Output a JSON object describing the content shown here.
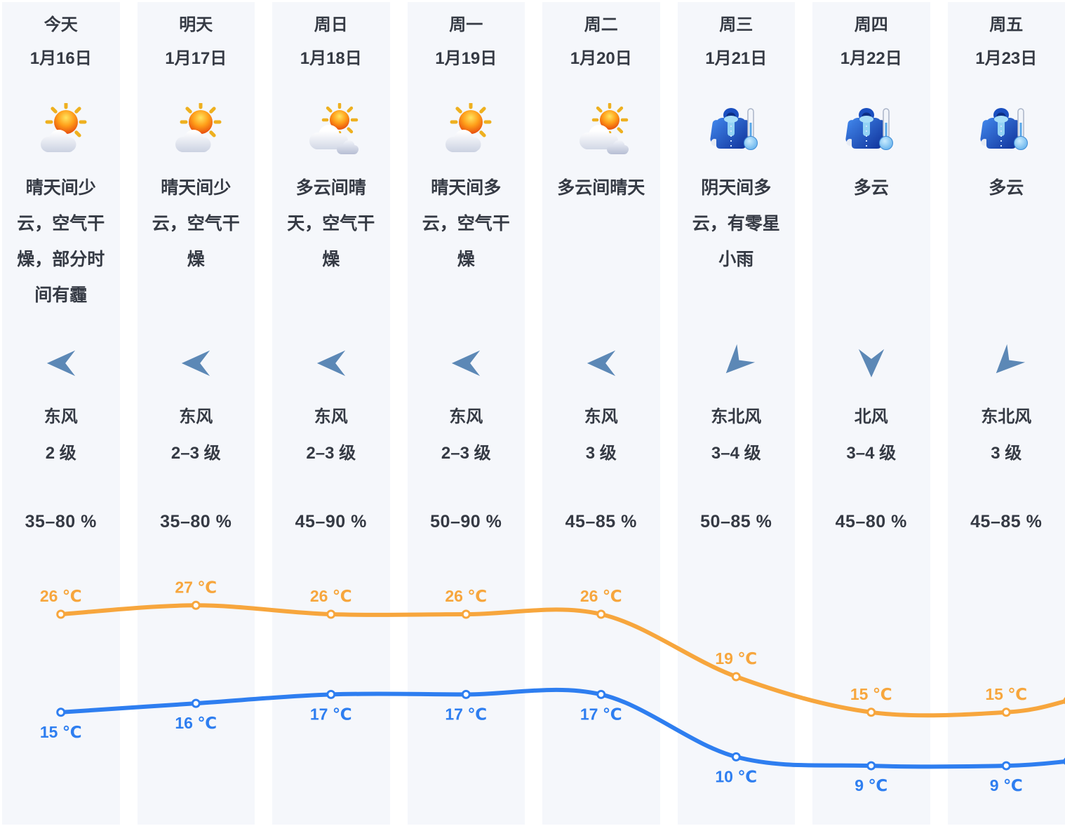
{
  "colors": {
    "high_temp": "#f7a63d",
    "low_temp": "#2e7ef0",
    "text": "#353a44",
    "column_bg": "#f5f7fb",
    "wind_arrow": "#5c88b6"
  },
  "days": [
    {
      "day": "今天",
      "date": "1月16日",
      "icon": "sun-small-cloud",
      "desc": "晴天间少云，空气干燥，部分时间有霾",
      "wind_dir": "东风",
      "wind_arrow": "east",
      "wind_level": "2 级",
      "humidity": "35–80 %",
      "high_label": "26 ℃",
      "low_label": "15 ℃"
    },
    {
      "day": "明天",
      "date": "1月17日",
      "icon": "sun-small-cloud",
      "desc": "晴天间少云，空气干燥",
      "wind_dir": "东风",
      "wind_arrow": "east",
      "wind_level": "2–3 级",
      "humidity": "35–80 %",
      "high_label": "27 ℃",
      "low_label": "16 ℃"
    },
    {
      "day": "周日",
      "date": "1月18日",
      "icon": "cloud-sun",
      "desc": "多云间晴天，空气干燥",
      "wind_dir": "东风",
      "wind_arrow": "east",
      "wind_level": "2–3 级",
      "humidity": "45–90 %",
      "high_label": "26 ℃",
      "low_label": "17 ℃"
    },
    {
      "day": "周一",
      "date": "1月19日",
      "icon": "sun-small-cloud",
      "desc": "晴天间多云，空气干燥",
      "wind_dir": "东风",
      "wind_arrow": "east",
      "wind_level": "2–3 级",
      "humidity": "50–90 %",
      "high_label": "26 ℃",
      "low_label": "17 ℃"
    },
    {
      "day": "周二",
      "date": "1月20日",
      "icon": "cloud-sun",
      "desc": "多云间晴天",
      "wind_dir": "东风",
      "wind_arrow": "east",
      "wind_level": "3 级",
      "humidity": "45–85 %",
      "high_label": "26 ℃",
      "low_label": "17 ℃"
    },
    {
      "day": "周三",
      "date": "1月21日",
      "icon": "cold",
      "desc": "阴天间多云，有零星小雨",
      "wind_dir": "东北风",
      "wind_arrow": "northeast",
      "wind_level": "3–4 级",
      "humidity": "50–85 %",
      "high_label": "19 ℃",
      "low_label": "10 ℃"
    },
    {
      "day": "周四",
      "date": "1月22日",
      "icon": "cold",
      "desc": "多云",
      "wind_dir": "北风",
      "wind_arrow": "north",
      "wind_level": "3–4 级",
      "humidity": "45–80 %",
      "high_label": "15 ℃",
      "low_label": "9 ℃"
    },
    {
      "day": "周五",
      "date": "1月23日",
      "icon": "cold",
      "desc": "多云",
      "wind_dir": "东北风",
      "wind_arrow": "northeast",
      "wind_level": "3 级",
      "humidity": "45–85 %",
      "high_label": "15 ℃",
      "low_label": "9 ℃"
    }
  ],
  "chart_data": {
    "type": "line",
    "categories": [
      "1月16日",
      "1月17日",
      "1月18日",
      "1月19日",
      "1月20日",
      "1月21日",
      "1月22日",
      "1月23日"
    ],
    "series": [
      {
        "name": "high",
        "color": "#f7a63d",
        "values": [
          26,
          27,
          26,
          26,
          26,
          19,
          15,
          15
        ],
        "label_position": "above"
      },
      {
        "name": "low",
        "color": "#2e7ef0",
        "values": [
          15,
          16,
          17,
          17,
          17,
          10,
          9,
          9
        ],
        "label_position": "below"
      }
    ],
    "unit": "℃",
    "grid": false,
    "y_axis_visible": false,
    "legend": "none",
    "edge_continuation": {
      "high": 16.3,
      "low": 9.5
    }
  }
}
